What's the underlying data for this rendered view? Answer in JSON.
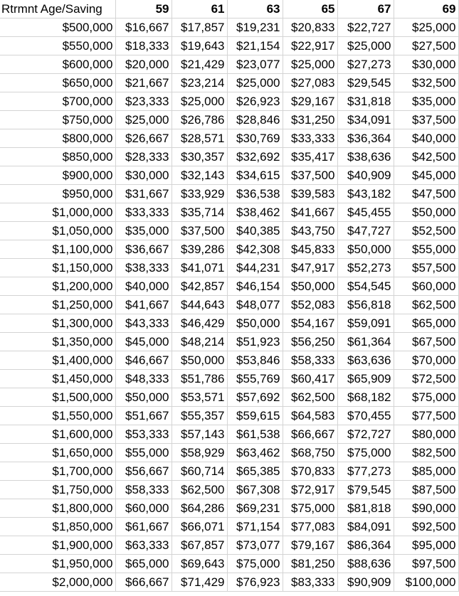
{
  "sheet": {
    "corner_label": "Rtrmnt Age/Saving",
    "ages": [
      "59",
      "61",
      "63",
      "65",
      "67",
      "69"
    ],
    "rows": [
      {
        "savings": "$500,000",
        "values": [
          "$16,667",
          "$17,857",
          "$19,231",
          "$20,833",
          "$22,727",
          "$25,000"
        ]
      },
      {
        "savings": "$550,000",
        "values": [
          "$18,333",
          "$19,643",
          "$21,154",
          "$22,917",
          "$25,000",
          "$27,500"
        ]
      },
      {
        "savings": "$600,000",
        "values": [
          "$20,000",
          "$21,429",
          "$23,077",
          "$25,000",
          "$27,273",
          "$30,000"
        ]
      },
      {
        "savings": "$650,000",
        "values": [
          "$21,667",
          "$23,214",
          "$25,000",
          "$27,083",
          "$29,545",
          "$32,500"
        ]
      },
      {
        "savings": "$700,000",
        "values": [
          "$23,333",
          "$25,000",
          "$26,923",
          "$29,167",
          "$31,818",
          "$35,000"
        ]
      },
      {
        "savings": "$750,000",
        "values": [
          "$25,000",
          "$26,786",
          "$28,846",
          "$31,250",
          "$34,091",
          "$37,500"
        ]
      },
      {
        "savings": "$800,000",
        "values": [
          "$26,667",
          "$28,571",
          "$30,769",
          "$33,333",
          "$36,364",
          "$40,000"
        ]
      },
      {
        "savings": "$850,000",
        "values": [
          "$28,333",
          "$30,357",
          "$32,692",
          "$35,417",
          "$38,636",
          "$42,500"
        ]
      },
      {
        "savings": "$900,000",
        "values": [
          "$30,000",
          "$32,143",
          "$34,615",
          "$37,500",
          "$40,909",
          "$45,000"
        ]
      },
      {
        "savings": "$950,000",
        "values": [
          "$31,667",
          "$33,929",
          "$36,538",
          "$39,583",
          "$43,182",
          "$47,500"
        ]
      },
      {
        "savings": "$1,000,000",
        "values": [
          "$33,333",
          "$35,714",
          "$38,462",
          "$41,667",
          "$45,455",
          "$50,000"
        ]
      },
      {
        "savings": "$1,050,000",
        "values": [
          "$35,000",
          "$37,500",
          "$40,385",
          "$43,750",
          "$47,727",
          "$52,500"
        ]
      },
      {
        "savings": "$1,100,000",
        "values": [
          "$36,667",
          "$39,286",
          "$42,308",
          "$45,833",
          "$50,000",
          "$55,000"
        ]
      },
      {
        "savings": "$1,150,000",
        "values": [
          "$38,333",
          "$41,071",
          "$44,231",
          "$47,917",
          "$52,273",
          "$57,500"
        ]
      },
      {
        "savings": "$1,200,000",
        "values": [
          "$40,000",
          "$42,857",
          "$46,154",
          "$50,000",
          "$54,545",
          "$60,000"
        ]
      },
      {
        "savings": "$1,250,000",
        "values": [
          "$41,667",
          "$44,643",
          "$48,077",
          "$52,083",
          "$56,818",
          "$62,500"
        ]
      },
      {
        "savings": "$1,300,000",
        "values": [
          "$43,333",
          "$46,429",
          "$50,000",
          "$54,167",
          "$59,091",
          "$65,000"
        ]
      },
      {
        "savings": "$1,350,000",
        "values": [
          "$45,000",
          "$48,214",
          "$51,923",
          "$56,250",
          "$61,364",
          "$67,500"
        ]
      },
      {
        "savings": "$1,400,000",
        "values": [
          "$46,667",
          "$50,000",
          "$53,846",
          "$58,333",
          "$63,636",
          "$70,000"
        ]
      },
      {
        "savings": "$1,450,000",
        "values": [
          "$48,333",
          "$51,786",
          "$55,769",
          "$60,417",
          "$65,909",
          "$72,500"
        ]
      },
      {
        "savings": "$1,500,000",
        "values": [
          "$50,000",
          "$53,571",
          "$57,692",
          "$62,500",
          "$68,182",
          "$75,000"
        ]
      },
      {
        "savings": "$1,550,000",
        "values": [
          "$51,667",
          "$55,357",
          "$59,615",
          "$64,583",
          "$70,455",
          "$77,500"
        ]
      },
      {
        "savings": "$1,600,000",
        "values": [
          "$53,333",
          "$57,143",
          "$61,538",
          "$66,667",
          "$72,727",
          "$80,000"
        ]
      },
      {
        "savings": "$1,650,000",
        "values": [
          "$55,000",
          "$58,929",
          "$63,462",
          "$68,750",
          "$75,000",
          "$82,500"
        ]
      },
      {
        "savings": "$1,700,000",
        "values": [
          "$56,667",
          "$60,714",
          "$65,385",
          "$70,833",
          "$77,273",
          "$85,000"
        ]
      },
      {
        "savings": "$1,750,000",
        "values": [
          "$58,333",
          "$62,500",
          "$67,308",
          "$72,917",
          "$79,545",
          "$87,500"
        ]
      },
      {
        "savings": "$1,800,000",
        "values": [
          "$60,000",
          "$64,286",
          "$69,231",
          "$75,000",
          "$81,818",
          "$90,000"
        ]
      },
      {
        "savings": "$1,850,000",
        "values": [
          "$61,667",
          "$66,071",
          "$71,154",
          "$77,083",
          "$84,091",
          "$92,500"
        ]
      },
      {
        "savings": "$1,900,000",
        "values": [
          "$63,333",
          "$67,857",
          "$73,077",
          "$79,167",
          "$86,364",
          "$95,000"
        ]
      },
      {
        "savings": "$1,950,000",
        "values": [
          "$65,000",
          "$69,643",
          "$75,000",
          "$81,250",
          "$88,636",
          "$97,500"
        ]
      },
      {
        "savings": "$2,000,000",
        "values": [
          "$66,667",
          "$71,429",
          "$76,923",
          "$83,333",
          "$90,909",
          "$100,000"
        ]
      }
    ]
  }
}
